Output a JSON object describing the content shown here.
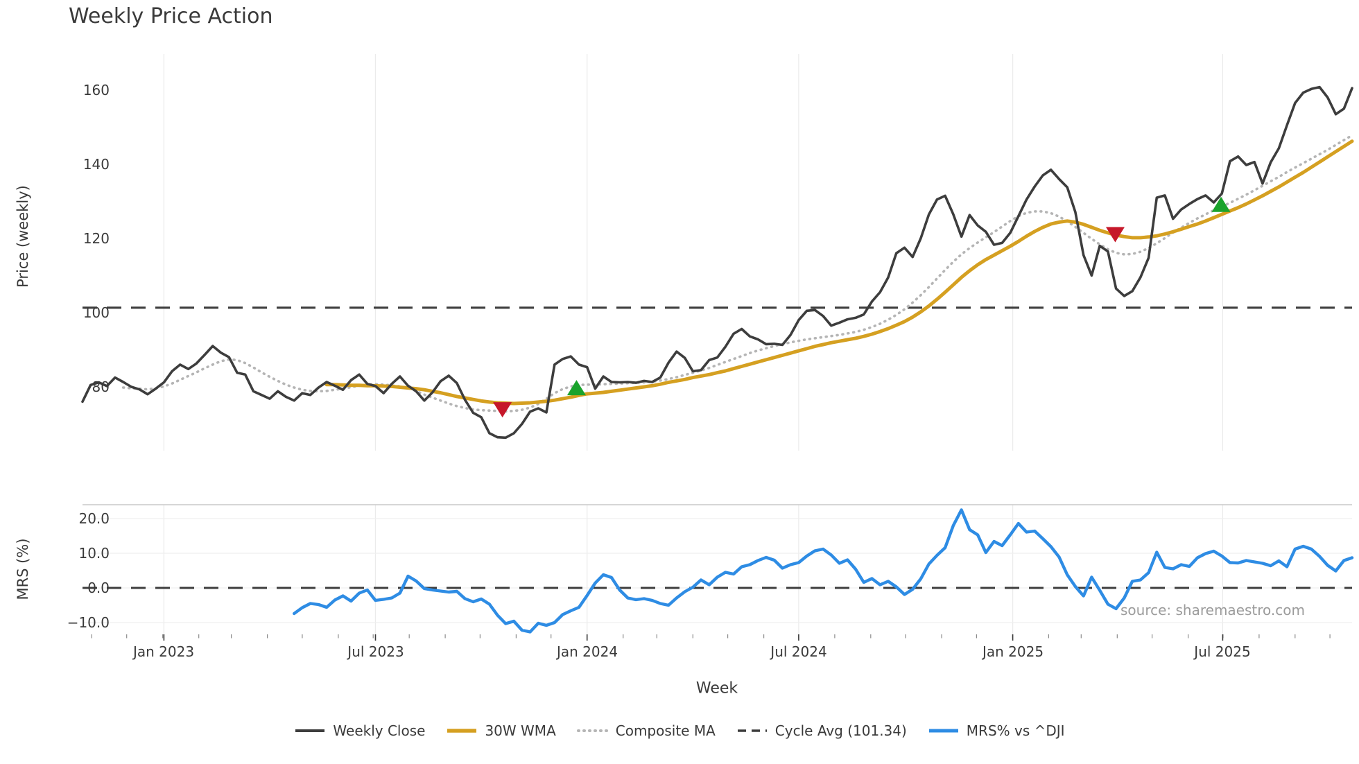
{
  "title": "Weekly Price Action",
  "source_note": "source: sharemaestro.com",
  "axes": {
    "price_ylabel": "Price (weekly)",
    "mrs_ylabel": "MRS (%)",
    "xlabel": "Week",
    "price_ytick_labels": [
      "80",
      "100",
      "120",
      "140",
      "160"
    ],
    "price_ytick_values": [
      80,
      100,
      120,
      140,
      160
    ],
    "mrs_ytick_labels": [
      "−10.0",
      "0.0",
      "10.0",
      "20.0"
    ],
    "mrs_ytick_values": [
      -10,
      0,
      10,
      20
    ],
    "x_tick_labels": [
      "Jan 2023",
      "Jul 2023",
      "Jan 2024",
      "Jul 2024",
      "Jan 2025",
      "Jul 2025"
    ],
    "x_tick_weeks": [
      10.0,
      36.0,
      62.0,
      88.0,
      114.3,
      140.1
    ]
  },
  "colors": {
    "close": "#3d3d3d",
    "wma": "#d5a021",
    "composite": "#b5b5b5",
    "cycle_avg": "#3d3d3d",
    "mrs": "#2e8ce4",
    "marker_up": "#1aa32c",
    "marker_down": "#c6182a",
    "grid": "#ebebeb",
    "spine": "#c8c8c8",
    "tick_text": "#3a3a3a"
  },
  "legend": [
    {
      "label": "Weekly Close",
      "color": "#3d3d3d",
      "style": "solid",
      "width": 4
    },
    {
      "label": "30W WMA",
      "color": "#d5a021",
      "style": "solid",
      "width": 5.5
    },
    {
      "label": "Composite MA",
      "color": "#b5b5b5",
      "style": "dotted",
      "width": 4
    },
    {
      "label": "Cycle Avg (101.34)",
      "color": "#3d3d3d",
      "style": "dashed",
      "width": 3.5
    },
    {
      "label": "MRS% vs ^DJI",
      "color": "#2e8ce4",
      "style": "solid",
      "width": 5
    }
  ],
  "chart_data": [
    {
      "type": "line",
      "panel": "price",
      "title": "Weekly Price Action",
      "xlabel": "Week",
      "ylabel": "Price (weekly)",
      "x_unit": "weekly, week 0 = late Oct 2022, 157 points ending Oct 2025",
      "ylim": [
        62.8,
        169.7
      ],
      "grid": "vertical-only",
      "cycle_avg": 101.34,
      "series": [
        {
          "name": "Weekly Close",
          "values": [
            76.0,
            80.5,
            81.2,
            80.2,
            82.5,
            81.3,
            80.0,
            79.3,
            78.0,
            79.5,
            81.2,
            84.2,
            86.0,
            84.8,
            86.3,
            88.6,
            91.0,
            89.2,
            88.0,
            83.8,
            83.3,
            78.8,
            77.8,
            76.8,
            78.8,
            77.3,
            76.3,
            78.3,
            77.8,
            79.8,
            81.3,
            80.3,
            79.2,
            81.8,
            83.3,
            80.8,
            80.2,
            78.3,
            80.8,
            82.8,
            80.3,
            78.8,
            76.3,
            78.5,
            81.5,
            83.0,
            81.0,
            76.5,
            73.0,
            71.8,
            67.5,
            66.4,
            66.3,
            67.5,
            70.0,
            73.3,
            74.2,
            73.1,
            86.0,
            87.5,
            88.2,
            86.0,
            85.3,
            79.5,
            82.8,
            81.3,
            81.2,
            81.3,
            81.1,
            81.6,
            81.3,
            82.5,
            86.5,
            89.5,
            87.8,
            84.2,
            84.5,
            87.2,
            87.9,
            90.8,
            94.3,
            95.6,
            93.6,
            92.8,
            91.5,
            91.6,
            91.3,
            94.0,
            98.0,
            100.5,
            100.7,
            99.1,
            96.5,
            97.3,
            98.2,
            98.6,
            99.5,
            103.0,
            105.5,
            109.5,
            116.0,
            117.5,
            115.0,
            120.0,
            126.5,
            130.5,
            131.5,
            126.5,
            120.5,
            126.3,
            123.5,
            121.8,
            118.3,
            118.8,
            121.5,
            126.0,
            130.5,
            134.0,
            137.0,
            138.5,
            136.0,
            133.8,
            127.1,
            115.5,
            110.0,
            118.0,
            116.5,
            106.5,
            104.5,
            105.8,
            109.5,
            114.8,
            131.0,
            131.6,
            125.3,
            127.8,
            129.3,
            130.6,
            131.6,
            129.7,
            132.1,
            140.8,
            142.1,
            139.8,
            140.6,
            134.8,
            140.5,
            144.3,
            150.5,
            156.5,
            159.3,
            160.3,
            160.8,
            158.0,
            153.5,
            155.0,
            160.5
          ]
        },
        {
          "name": "30W WMA",
          "values": [
            null,
            null,
            null,
            null,
            null,
            null,
            null,
            null,
            null,
            null,
            null,
            null,
            null,
            null,
            null,
            null,
            null,
            null,
            null,
            null,
            null,
            null,
            null,
            null,
            null,
            null,
            null,
            null,
            null,
            null,
            80.6,
            80.6,
            80.5,
            80.4,
            80.4,
            80.3,
            80.3,
            80.2,
            80.1,
            79.9,
            79.7,
            79.5,
            79.2,
            78.8,
            78.4,
            77.9,
            77.4,
            77.0,
            76.6,
            76.2,
            75.9,
            75.7,
            75.6,
            75.5,
            75.6,
            75.7,
            75.9,
            76.1,
            76.4,
            76.8,
            77.2,
            77.7,
            78.1,
            78.3,
            78.5,
            78.8,
            79.1,
            79.4,
            79.7,
            80.0,
            80.3,
            80.7,
            81.2,
            81.6,
            82.0,
            82.5,
            82.9,
            83.3,
            83.8,
            84.3,
            84.9,
            85.5,
            86.1,
            86.7,
            87.3,
            87.9,
            88.5,
            89.1,
            89.7,
            90.3,
            90.9,
            91.4,
            91.9,
            92.3,
            92.7,
            93.1,
            93.6,
            94.2,
            94.9,
            95.7,
            96.6,
            97.6,
            98.8,
            100.2,
            101.8,
            103.6,
            105.5,
            107.5,
            109.5,
            111.3,
            112.9,
            114.3,
            115.5,
            116.7,
            117.9,
            119.2,
            120.6,
            121.9,
            123.0,
            123.9,
            124.4,
            124.7,
            124.4,
            123.8,
            123.0,
            122.2,
            121.5,
            120.9,
            120.5,
            120.2,
            120.2,
            120.4,
            120.7,
            121.2,
            121.8,
            122.5,
            123.2,
            123.9,
            124.7,
            125.6,
            126.5,
            127.4,
            128.3,
            129.3,
            130.4,
            131.5,
            132.7,
            133.9,
            135.2,
            136.5,
            137.8,
            139.2,
            140.6,
            142.0,
            143.4,
            144.8,
            146.2
          ]
        },
        {
          "name": "Composite MA",
          "values": [
            null,
            null,
            null,
            null,
            null,
            79.8,
            79.6,
            79.5,
            79.3,
            79.6,
            80.1,
            80.9,
            81.9,
            82.9,
            83.9,
            85.0,
            86.0,
            86.9,
            87.4,
            87.2,
            86.4,
            85.2,
            83.9,
            82.7,
            81.6,
            80.6,
            79.8,
            79.2,
            78.9,
            78.8,
            78.9,
            79.2,
            79.5,
            79.9,
            80.3,
            80.6,
            80.7,
            80.6,
            80.4,
            80.1,
            79.7,
            78.9,
            77.9,
            77.1,
            76.3,
            75.5,
            74.8,
            74.3,
            73.9,
            73.7,
            73.6,
            73.5,
            73.4,
            73.5,
            73.8,
            74.4,
            75.4,
            76.8,
            78.3,
            79.4,
            80.1,
            80.5,
            80.6,
            80.6,
            80.7,
            80.8,
            80.9,
            81.0,
            81.1,
            81.2,
            81.4,
            81.7,
            82.1,
            82.6,
            83.2,
            83.8,
            84.4,
            85.1,
            85.9,
            86.7,
            87.5,
            88.3,
            89.1,
            89.8,
            90.4,
            91.0,
            91.5,
            92.0,
            92.4,
            92.8,
            93.1,
            93.4,
            93.7,
            94.0,
            94.4,
            94.8,
            95.4,
            96.1,
            97.0,
            98.1,
            99.4,
            100.9,
            102.7,
            104.7,
            106.9,
            109.2,
            111.5,
            113.7,
            115.7,
            117.4,
            118.9,
            120.3,
            121.7,
            123.2,
            124.7,
            126.0,
            126.9,
            127.3,
            127.3,
            126.8,
            125.9,
            124.6,
            123.1,
            121.5,
            119.9,
            118.4,
            117.1,
            116.1,
            115.7,
            115.8,
            116.4,
            117.4,
            118.7,
            120.1,
            121.6,
            122.9,
            124.2,
            125.4,
            126.5,
            127.6,
            128.6,
            129.6,
            130.7,
            131.8,
            133.0,
            134.2,
            135.4,
            136.6,
            137.9,
            139.1,
            140.3,
            141.5,
            142.7,
            143.9,
            145.2,
            146.5,
            147.8
          ]
        }
      ],
      "markers": [
        {
          "week": 51.6,
          "value": 74.0,
          "dir": "down"
        },
        {
          "week": 60.7,
          "value": 79.6,
          "dir": "up"
        },
        {
          "week": 126.9,
          "value": 121.2,
          "dir": "down"
        },
        {
          "week": 139.9,
          "value": 129.0,
          "dir": "up"
        }
      ]
    },
    {
      "type": "line",
      "panel": "mrs",
      "ylabel": "MRS (%)",
      "x_unit": "weekly, same axis as price panel",
      "ylim": [
        -13.4,
        24.0
      ],
      "grid": "horizontal-and-vertical",
      "zero_line": 0.0,
      "series": [
        {
          "name": "MRS% vs ^DJI",
          "values": [
            null,
            null,
            null,
            null,
            null,
            null,
            null,
            null,
            null,
            null,
            null,
            null,
            null,
            null,
            null,
            null,
            null,
            null,
            null,
            null,
            null,
            null,
            null,
            null,
            null,
            null,
            -7.4,
            -5.7,
            -4.5,
            -4.8,
            -5.6,
            -3.5,
            -2.3,
            -3.8,
            -1.5,
            -0.6,
            -3.6,
            -3.3,
            -2.9,
            -1.5,
            3.4,
            2.0,
            -0.2,
            -0.6,
            -0.9,
            -1.2,
            -1.0,
            -3.1,
            -4.0,
            -3.2,
            -4.7,
            -7.9,
            -10.3,
            -9.6,
            -12.2,
            -12.7,
            -10.2,
            -10.8,
            -10.0,
            -7.7,
            -6.6,
            -5.6,
            -2.2,
            1.4,
            3.8,
            3.0,
            -0.6,
            -2.9,
            -3.4,
            -3.1,
            -3.6,
            -4.5,
            -5.0,
            -2.9,
            -1.1,
            0.2,
            2.3,
            0.9,
            3.1,
            4.5,
            4.0,
            6.1,
            6.7,
            7.9,
            8.8,
            8.0,
            5.7,
            6.7,
            7.3,
            9.2,
            10.7,
            11.2,
            9.5,
            7.1,
            8.1,
            5.4,
            1.6,
            2.7,
            0.9,
            1.9,
            0.3,
            -1.9,
            -0.4,
            2.6,
            6.9,
            9.4,
            11.6,
            18.0,
            22.5,
            16.8,
            15.3,
            10.2,
            13.4,
            12.2,
            15.3,
            18.6,
            16.1,
            16.4,
            14.2,
            11.9,
            8.9,
            3.8,
            0.4,
            -2.3,
            3.1,
            -0.7,
            -4.7,
            -6.0,
            -2.9,
            1.9,
            2.3,
            4.4,
            10.3,
            5.9,
            5.5,
            6.7,
            6.2,
            8.7,
            9.9,
            10.6,
            9.2,
            7.3,
            7.2,
            7.9,
            7.5,
            7.1,
            6.4,
            7.8,
            6.1,
            11.2,
            12.0,
            11.2,
            9.1,
            6.5,
            4.9,
            7.9,
            8.7
          ]
        }
      ]
    }
  ]
}
